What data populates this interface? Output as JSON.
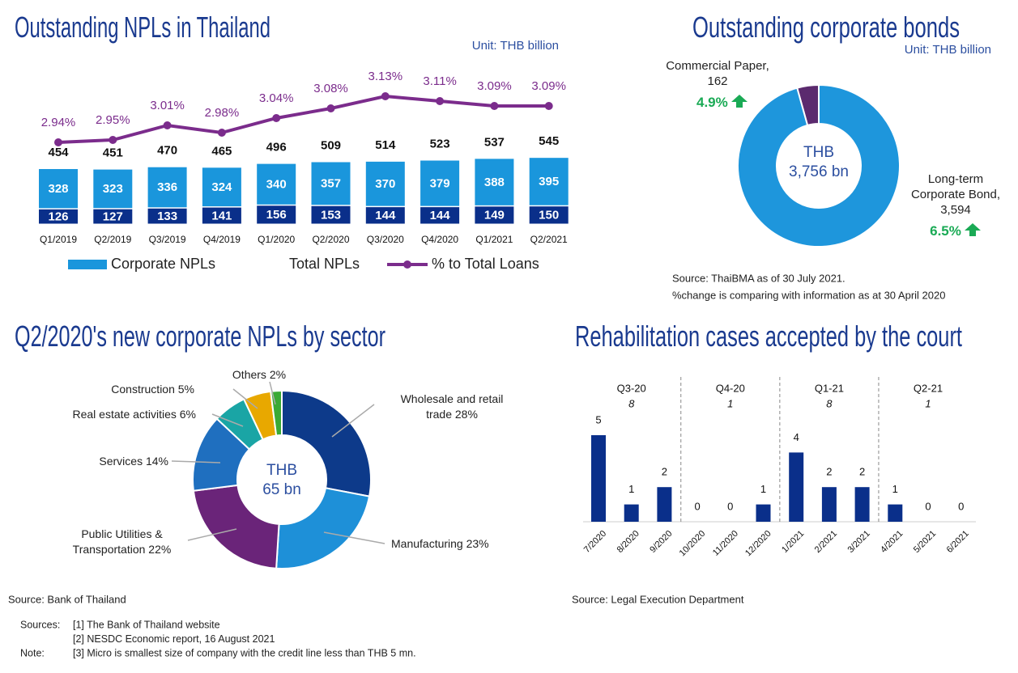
{
  "chart_data": [
    {
      "type": "combo",
      "title": "Outstanding NPLs in Thailand",
      "unit": "Unit: THB billion",
      "categories": [
        "Q1/2019",
        "Q2/2019",
        "Q3/2019",
        "Q4/2019",
        "Q1/2020",
        "Q2/2020",
        "Q3/2020",
        "Q4/2020",
        "Q1/2021",
        "Q2/2021"
      ],
      "series": [
        {
          "color": "#0a2f8a",
          "values": [
            126,
            127,
            133,
            141,
            156,
            153,
            144,
            144,
            149,
            150
          ]
        },
        {
          "name": "Corporate NPLs",
          "color": "#1a96dc",
          "values": [
            328,
            323,
            336,
            324,
            340,
            357,
            370,
            379,
            388,
            395
          ]
        },
        {
          "name": "Total NPLs",
          "values": [
            454,
            451,
            470,
            465,
            496,
            509,
            514,
            523,
            537,
            545
          ]
        },
        {
          "name": "% to Total Loans",
          "color": "#7b2c8c",
          "axis": "y2",
          "values": [
            2.94,
            2.95,
            3.01,
            2.98,
            3.04,
            3.08,
            3.13,
            3.11,
            3.09,
            3.09
          ],
          "value_labels": [
            "2.94%",
            "2.95%",
            "3.01%",
            "2.98%",
            "3.04%",
            "3.08%",
            "3.13%",
            "3.11%",
            "3.09%",
            "3.09%"
          ]
        }
      ],
      "ylim": [
        0,
        1000
      ],
      "y2lim": [
        2.6,
        3.2
      ]
    },
    {
      "type": "donut",
      "title": "Outstanding corporate bonds",
      "unit": "Unit: THB billion",
      "center": [
        "THB",
        "3,756 bn"
      ],
      "categories": [
        "Commercial Paper,",
        "Long-term Corporate Bond,"
      ],
      "values": [
        162,
        3594
      ],
      "value_labels": [
        "162",
        "3,594"
      ],
      "colors": [
        "#5b2a6e",
        "#1e96dc"
      ],
      "changes": [
        {
          "value": 4.9,
          "label": "4.9%"
        },
        {
          "value": 6.5,
          "label": "6.5%"
        }
      ],
      "change_color": "#1aaa55",
      "source": [
        "Source: ThaiBMA as of 30 July 2021.",
        "%change is comparing with information as at 30 April 2020"
      ]
    },
    {
      "type": "donut",
      "title": "Q2/2020's new corporate NPLs by sector",
      "center": [
        "THB",
        "65 bn"
      ],
      "categories": [
        "Wholesale and retail trade",
        "Manufacturing",
        "Public Utilities & Transportation",
        "Services",
        "Real estate activities",
        "Construction",
        "Others"
      ],
      "values": [
        28,
        23,
        22,
        14,
        6,
        5,
        2
      ],
      "value_labels": [
        "28%",
        "23%",
        "22%",
        "14%",
        "6%",
        "5%",
        "2%"
      ],
      "colors": [
        "#0d3a8a",
        "#1e90d8",
        "#6a2479",
        "#1f6fbf",
        "#1aa5a5",
        "#e8a800",
        "#3aaa35"
      ],
      "source": [
        "Source: Bank of Thailand"
      ]
    },
    {
      "type": "bar",
      "title": "Rehabilitation cases accepted by the court",
      "categories": [
        "7/2020",
        "8/2020",
        "9/2020",
        "10/2020",
        "11/2020",
        "12/2020",
        "1/2021",
        "2/2021",
        "3/2021",
        "4/2021",
        "5/2021",
        "6/2021"
      ],
      "values": [
        5,
        1,
        2,
        0,
        0,
        1,
        4,
        2,
        2,
        1,
        0,
        0
      ],
      "color": "#0a2f8a",
      "ylim": [
        0,
        5
      ],
      "groups": [
        {
          "name": "Q3-20",
          "total": 8
        },
        {
          "name": "Q4-20",
          "total": 1
        },
        {
          "name": "Q1-21",
          "total": 8
        },
        {
          "name": "Q2-21",
          "total": 1
        }
      ],
      "source": [
        "Source: Legal Execution Department"
      ]
    }
  ],
  "notes": [
    {
      "label": "Sources:",
      "lines": [
        "[1] The Bank of Thailand website",
        "[2] NESDC Economic report, 16 August 2021"
      ]
    },
    {
      "label": "Note:",
      "lines": [
        "[3] Micro is smallest size of company with the credit line less than THB 5 mn."
      ]
    }
  ]
}
